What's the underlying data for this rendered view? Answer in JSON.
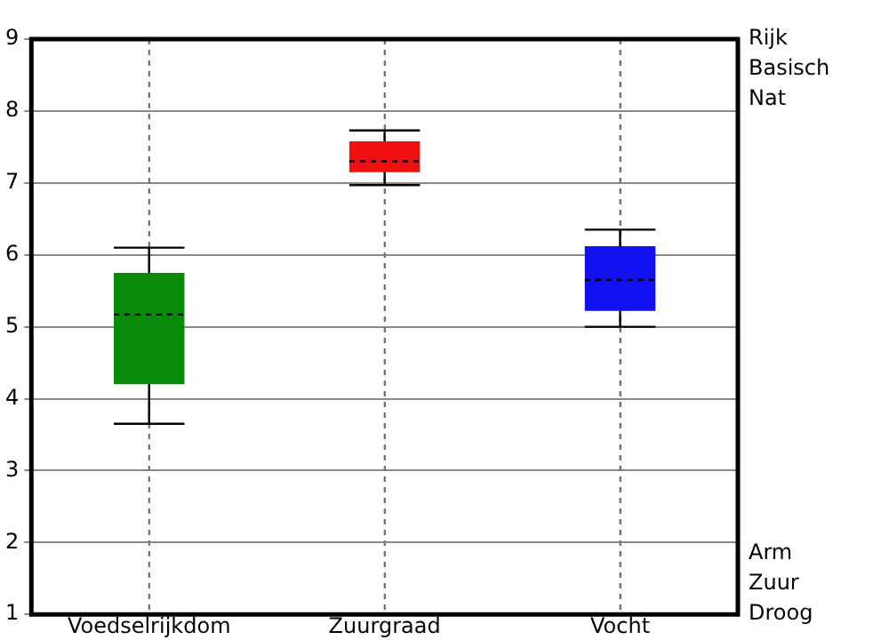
{
  "chart_data": {
    "type": "box",
    "categories": [
      "Voedselrijkdom",
      "Zuurgraad",
      "Vocht"
    ],
    "colors": [
      "#0a8a0a",
      "#f01010",
      "#1010f0"
    ],
    "boxes": [
      {
        "low": 3.65,
        "q1": 4.2,
        "median": 5.17,
        "q3": 5.75,
        "high": 6.1
      },
      {
        "low": 6.97,
        "q1": 7.15,
        "median": 7.3,
        "q3": 7.58,
        "high": 7.73
      },
      {
        "low": 5.0,
        "q1": 5.22,
        "median": 5.65,
        "q3": 6.12,
        "high": 6.35
      }
    ],
    "ylim": [
      1,
      9
    ],
    "yticks": [
      1,
      2,
      3,
      4,
      5,
      6,
      7,
      8,
      9
    ],
    "grid": true,
    "legend": false,
    "annotations": [
      "Rijk",
      "Basisch",
      "Nat",
      "Arm",
      "Zuur",
      "Droog"
    ]
  }
}
